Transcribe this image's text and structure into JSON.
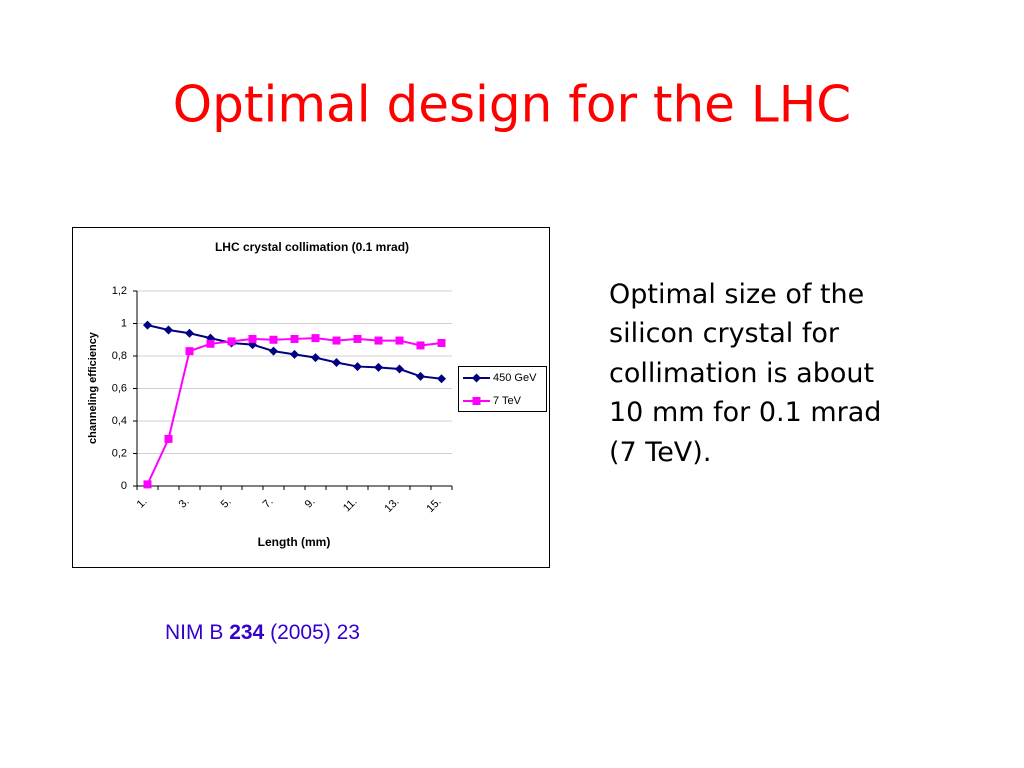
{
  "slide": {
    "title": "Optimal design for the LHC",
    "body": [
      "Optimal size of the",
      "silicon crystal for",
      "collimation is about",
      "10 mm for 0.1 mrad",
      "(7 TeV)."
    ],
    "citation": {
      "journal": "NIM B",
      "volume": "234",
      "rest": "(2005) 23"
    }
  },
  "chart_data": {
    "type": "line",
    "title": "LHC crystal collimation (0.1 mrad)",
    "x_label": "Length (mm)",
    "y_label": "channeling efficiency",
    "categories": [
      "1.",
      null,
      "3.",
      null,
      "5.",
      null,
      "7.",
      null,
      "9.",
      null,
      "11.",
      null,
      "13.",
      null,
      "15."
    ],
    "series": [
      {
        "name": "450 GeV",
        "color": "#000080",
        "marker": "diamond",
        "values": [
          0.99,
          0.96,
          0.94,
          0.91,
          0.88,
          0.87,
          0.83,
          0.81,
          0.79,
          0.76,
          0.735,
          0.73,
          0.72,
          0.675,
          0.66
        ]
      },
      {
        "name": "7 TeV",
        "color": "#ff00ff",
        "marker": "square",
        "values": [
          0.01,
          0.29,
          0.83,
          0.875,
          0.89,
          0.905,
          0.9,
          0.905,
          0.91,
          0.895,
          0.905,
          0.895,
          0.895,
          0.865,
          0.88
        ]
      }
    ],
    "ylim": [
      0,
      1.2
    ],
    "yticks": [
      0,
      {
        "value": 0.2,
        "label": "0,2"
      },
      {
        "value": 0.4,
        "label": "0,4"
      },
      {
        "value": 0.6,
        "label": "0,6"
      },
      {
        "value": 0.8,
        "label": "0,8"
      },
      1,
      {
        "value": 1.2,
        "label": "1,2"
      }
    ],
    "grid": true,
    "legend": "right"
  }
}
